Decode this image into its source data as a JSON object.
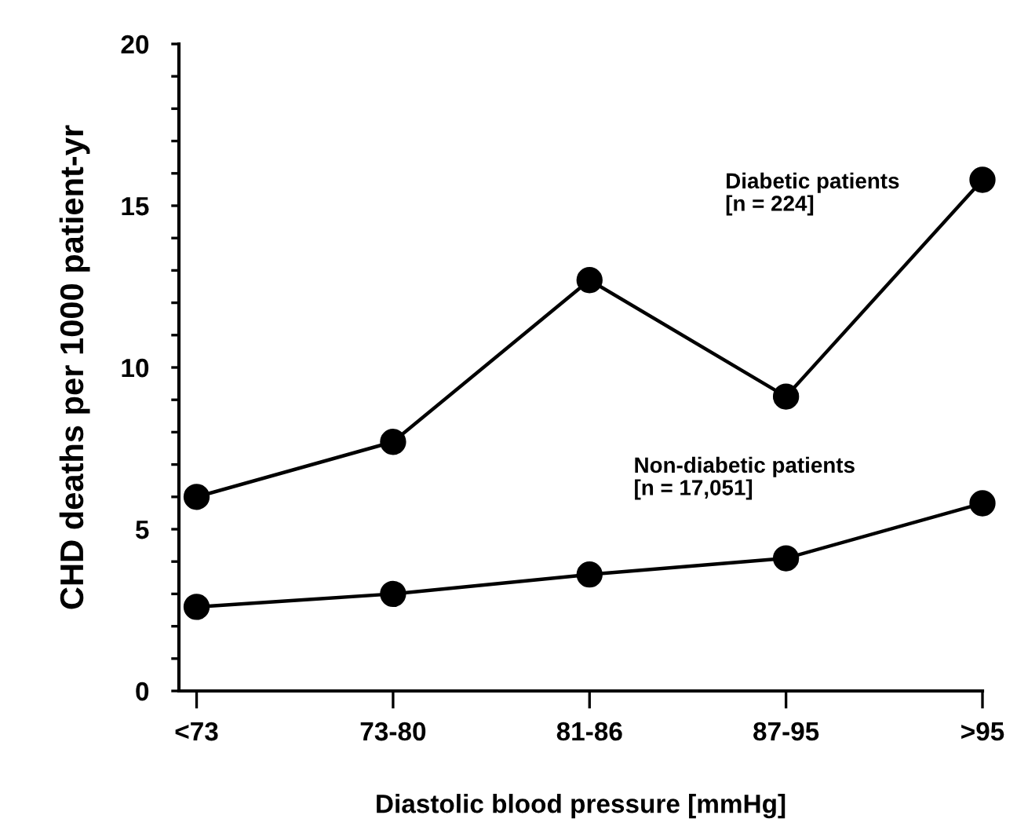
{
  "chart_data": {
    "type": "line",
    "xlabel": "Diastolic blood pressure [mmHg]",
    "ylabel": "CHD deaths per 1000 patient-yr",
    "categories": [
      "<73",
      "73-80",
      "81-86",
      "87-95",
      ">95"
    ],
    "series": [
      {
        "name": "Diabetic patients",
        "color": "#000000",
        "values": [
          6.0,
          7.7,
          12.7,
          9.1,
          15.8
        ]
      },
      {
        "name": "Non-diabetic patients",
        "color": "#000000",
        "values": [
          2.6,
          3.0,
          3.6,
          4.1,
          5.8
        ]
      }
    ],
    "annotations": [
      "[n = 224]",
      "[n = 17,051]"
    ],
    "ylim": [
      0,
      20
    ],
    "yticks": [
      0,
      {
        "value": 1,
        "label": null
      },
      {
        "value": 2,
        "label": null
      },
      {
        "value": 3,
        "label": null
      },
      {
        "value": 4,
        "label": null
      },
      5,
      {
        "value": 6,
        "label": null
      },
      {
        "value": 7,
        "label": null
      },
      {
        "value": 8,
        "label": null
      },
      {
        "value": 9,
        "label": null
      },
      10,
      {
        "value": 11,
        "label": null
      },
      {
        "value": 12,
        "label": null
      },
      {
        "value": 13,
        "label": null
      },
      {
        "value": 14,
        "label": null
      },
      15,
      {
        "value": 16,
        "label": null
      },
      {
        "value": 17,
        "label": null
      },
      {
        "value": 18,
        "label": null
      },
      {
        "value": 19,
        "label": null
      },
      20
    ],
    "marker": "circle",
    "line_style": "solid",
    "grid": false,
    "legend": false
  }
}
